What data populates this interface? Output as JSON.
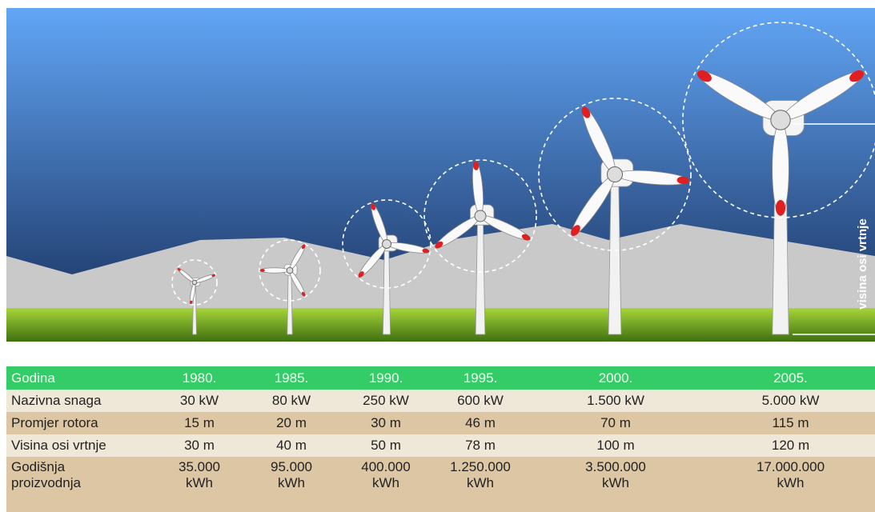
{
  "illustration": {
    "label": "visina osi vrtnje"
  },
  "table": {
    "header": [
      "Godina",
      "1980.",
      "1985.",
      "1990.",
      "1995.",
      "2000.",
      "2005."
    ],
    "rows": [
      [
        [
          "Nazivna snaga"
        ],
        [
          "30 kW"
        ],
        [
          "80 kW"
        ],
        [
          "250 kW"
        ],
        [
          "600 kW"
        ],
        [
          "1.500 kW"
        ],
        [
          "5.000 kW"
        ]
      ],
      [
        [
          "Promjer rotora"
        ],
        [
          "15 m"
        ],
        [
          "20 m"
        ],
        [
          "30 m"
        ],
        [
          "46 m"
        ],
        [
          "70 m"
        ],
        [
          "115 m"
        ]
      ],
      [
        [
          "Visina osi vrtnje"
        ],
        [
          "30 m"
        ],
        [
          "40 m"
        ],
        [
          "50 m"
        ],
        [
          "78 m"
        ],
        [
          "100 m"
        ],
        [
          "120 m"
        ]
      ],
      [
        [
          "Godišnja",
          "proizvodnja"
        ],
        [
          "35.000",
          "kWh"
        ],
        [
          "95.000",
          "kWh"
        ],
        [
          "400.000",
          "kWh"
        ],
        [
          "1.250.000",
          "kWh"
        ],
        [
          "3.500.000",
          "kWh"
        ],
        [
          "17.000.000",
          "kWh"
        ]
      ]
    ]
  }
}
